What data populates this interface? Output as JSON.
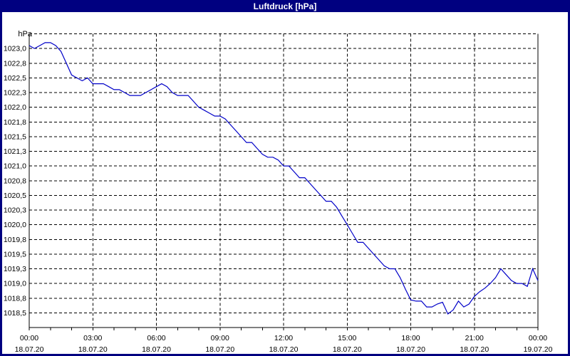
{
  "window": {
    "title": "Luftdruck [hPa]"
  },
  "colors": {
    "frame_bg": "#000080",
    "titlebar_bg": "#000080",
    "titlebar_text": "#ffffff",
    "plot_bg": "#ffffff",
    "grid": "#000000",
    "axis": "#000000",
    "label_text": "#000000",
    "line": "#0000c8"
  },
  "chart_data": {
    "type": "line",
    "title": "Luftdruck [hPa]",
    "unit_label": "hPa",
    "xlabel": "",
    "ylabel": "hPa",
    "grid": "dashed, horizontal every 0.25 hPa, vertical every 3 h",
    "legend": "none",
    "ylim": [
      1018.25,
      1023.25
    ],
    "xlim_hours": [
      0,
      24
    ],
    "y_gridline_step": 0.25,
    "minor_x_tick_hours": 1,
    "y_ticks": [
      {
        "label": "1023,0",
        "value": 1023.0
      },
      {
        "label": "1022,8",
        "value": 1022.75
      },
      {
        "label": "1022,5",
        "value": 1022.5
      },
      {
        "label": "1022,3",
        "value": 1022.25
      },
      {
        "label": "1022,0",
        "value": 1022.0
      },
      {
        "label": "1021,8",
        "value": 1021.75
      },
      {
        "label": "1021,5",
        "value": 1021.5
      },
      {
        "label": "1021,3",
        "value": 1021.25
      },
      {
        "label": "1021,0",
        "value": 1021.0
      },
      {
        "label": "1020,8",
        "value": 1020.75
      },
      {
        "label": "1020,5",
        "value": 1020.5
      },
      {
        "label": "1020,3",
        "value": 1020.25
      },
      {
        "label": "1020,0",
        "value": 1020.0
      },
      {
        "label": "1019,8",
        "value": 1019.75
      },
      {
        "label": "1019,5",
        "value": 1019.5
      },
      {
        "label": "1019,3",
        "value": 1019.25
      },
      {
        "label": "1019,0",
        "value": 1019.0
      },
      {
        "label": "1018,8",
        "value": 1018.75
      },
      {
        "label": "1018,5",
        "value": 1018.5
      }
    ],
    "x_ticks": [
      {
        "hour": 0,
        "time": "00:00",
        "date": "18.07.20"
      },
      {
        "hour": 3,
        "time": "03:00",
        "date": "18.07.20"
      },
      {
        "hour": 6,
        "time": "06:00",
        "date": "18.07.20"
      },
      {
        "hour": 9,
        "time": "09:00",
        "date": "18.07.20"
      },
      {
        "hour": 12,
        "time": "12:00",
        "date": "18.07.20"
      },
      {
        "hour": 15,
        "time": "15:00",
        "date": "18.07.20"
      },
      {
        "hour": 18,
        "time": "18:00",
        "date": "18.07.20"
      },
      {
        "hour": 21,
        "time": "21:00",
        "date": "18.07.20"
      },
      {
        "hour": 24,
        "time": "00:00",
        "date": "19.07.20"
      }
    ],
    "series": [
      {
        "name": "Luftdruck",
        "unit": "hPa",
        "start_time": "00:00",
        "interval_minutes": 15,
        "values": [
          1023.05,
          1023.0,
          1023.05,
          1023.1,
          1023.1,
          1023.05,
          1022.95,
          1022.75,
          1022.55,
          1022.5,
          1022.45,
          1022.5,
          1022.4,
          1022.4,
          1022.4,
          1022.35,
          1022.3,
          1022.3,
          1022.25,
          1022.2,
          1022.2,
          1022.2,
          1022.25,
          1022.3,
          1022.35,
          1022.4,
          1022.35,
          1022.25,
          1022.2,
          1022.2,
          1022.2,
          1022.1,
          1022.0,
          1021.95,
          1021.9,
          1021.85,
          1021.85,
          1021.8,
          1021.7,
          1021.6,
          1021.5,
          1021.4,
          1021.4,
          1021.3,
          1021.2,
          1021.15,
          1021.15,
          1021.1,
          1021.0,
          1021.0,
          1020.9,
          1020.8,
          1020.8,
          1020.7,
          1020.6,
          1020.5,
          1020.4,
          1020.4,
          1020.3,
          1020.15,
          1020.0,
          1019.85,
          1019.7,
          1019.7,
          1019.6,
          1019.5,
          1019.4,
          1019.3,
          1019.25,
          1019.25,
          1019.1,
          1018.9,
          1018.72,
          1018.7,
          1018.7,
          1018.6,
          1018.6,
          1018.65,
          1018.68,
          1018.48,
          1018.55,
          1018.7,
          1018.6,
          1018.65,
          1018.78,
          1018.86,
          1018.92,
          1019.0,
          1019.1,
          1019.25,
          1019.15,
          1019.05,
          1019.0,
          1019.0,
          1018.95,
          1019.25,
          1019.05
        ]
      }
    ]
  }
}
